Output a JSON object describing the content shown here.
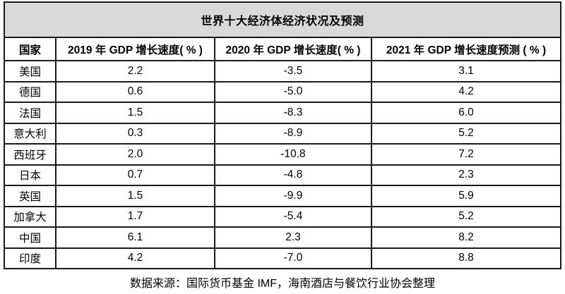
{
  "title": "世界十大经济体经济状况及预测",
  "table": {
    "headers": {
      "country": "国家",
      "y2019": "2019 年 GDP 增长速度( % )",
      "y2020": "2020 年 GDP 增长速度( % )",
      "y2021": "2021 年 GDP 增长速度预测 ( % )"
    },
    "rows": [
      {
        "country": "美国",
        "y2019": "2.2",
        "y2020": "-3.5",
        "y2021": "3.1"
      },
      {
        "country": "德国",
        "y2019": "0.6",
        "y2020": "-5.0",
        "y2021": "4.2"
      },
      {
        "country": "法国",
        "y2019": "1.5",
        "y2020": "-8.3",
        "y2021": "6.0"
      },
      {
        "country": "意大利",
        "y2019": "0.3",
        "y2020": "-8.9",
        "y2021": "5.2"
      },
      {
        "country": "西班牙",
        "y2019": "2.0",
        "y2020": "-10.8",
        "y2021": "7.2"
      },
      {
        "country": "日本",
        "y2019": "0.7",
        "y2020": "-4.8",
        "y2021": "2.3"
      },
      {
        "country": "英国",
        "y2019": "1.5",
        "y2020": "-9.9",
        "y2021": "5.9"
      },
      {
        "country": "加拿大",
        "y2019": "1.7",
        "y2020": "-5.4",
        "y2021": "5.2"
      },
      {
        "country": "中国",
        "y2019": "6.1",
        "y2020": "2.3",
        "y2021": "8.2"
      },
      {
        "country": "印度",
        "y2019": "4.2",
        "y2020": "-7.0",
        "y2021": "8.8"
      }
    ]
  },
  "footer": {
    "source_note": "数据来源：国际货币基金 IMF，海南酒店与餐饮行业协会整理"
  },
  "colors": {
    "title_bg": "#d9d9d9",
    "border_color": "#1a1a1a",
    "text_color": "#000000",
    "page_bg": "#ffffff"
  },
  "chart_data": {
    "type": "table",
    "title": "世界十大经济体经济状况及预测",
    "columns": [
      "国家",
      "2019 年 GDP 增长速度( % )",
      "2020 年 GDP 增长速度( % )",
      "2021 年 GDP 增长速度预测 ( % )"
    ],
    "rows": [
      [
        "美国",
        2.2,
        -3.5,
        3.1
      ],
      [
        "德国",
        0.6,
        -5.0,
        4.2
      ],
      [
        "法国",
        1.5,
        -8.3,
        6.0
      ],
      [
        "意大利",
        0.3,
        -8.9,
        5.2
      ],
      [
        "西班牙",
        2.0,
        -10.8,
        7.2
      ],
      [
        "日本",
        0.7,
        -4.8,
        2.3
      ],
      [
        "英国",
        1.5,
        -9.9,
        5.9
      ],
      [
        "加拿大",
        1.7,
        -5.4,
        5.2
      ],
      [
        "中国",
        6.1,
        2.3,
        8.2
      ],
      [
        "印度",
        4.2,
        -7.0,
        8.8
      ]
    ],
    "source_note": "数据来源：国际货币基金 IMF，海南酒店与餐饮行业协会整理"
  }
}
